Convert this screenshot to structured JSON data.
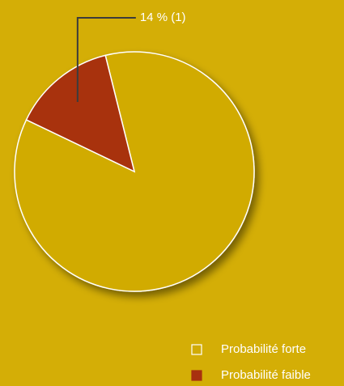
{
  "chart_data": {
    "type": "pie",
    "categories": [
      "Probabilité forte",
      "Probabilité faible"
    ],
    "values": [
      86,
      14
    ],
    "value_labels": [
      null,
      "14 % (1)"
    ],
    "colors": [
      "#d1ab05",
      "#a8310f"
    ],
    "legend": "bottom-right"
  }
}
